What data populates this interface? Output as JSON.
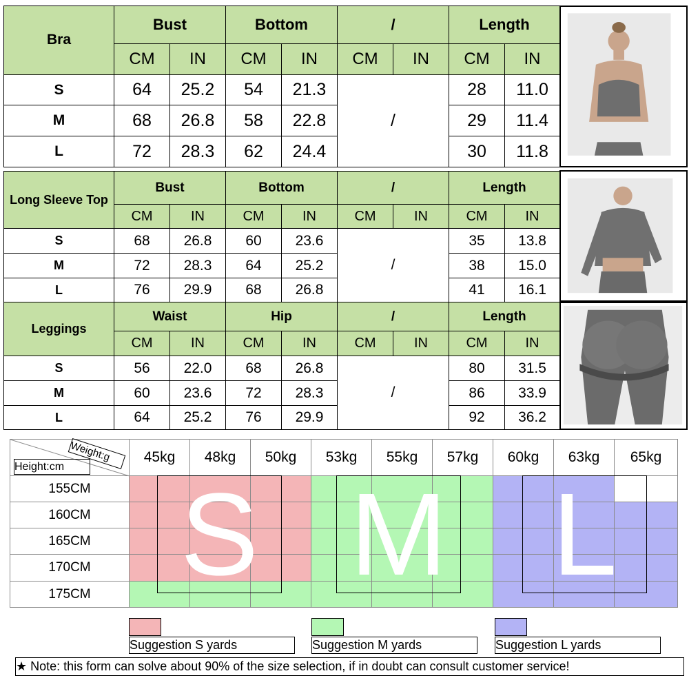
{
  "tables": [
    {
      "title": "Bra",
      "groups": [
        "Bust",
        "Bottom",
        "/",
        "Length"
      ],
      "units": [
        "CM",
        "IN",
        "CM",
        "IN",
        "CM",
        "IN",
        "CM",
        "IN"
      ],
      "rows": [
        {
          "size": "S",
          "values": [
            "64",
            "25.2",
            "54",
            "21.3",
            "28",
            "11.0"
          ]
        },
        {
          "size": "M",
          "values": [
            "68",
            "26.8",
            "58",
            "22.8",
            "29",
            "11.4"
          ]
        },
        {
          "size": "L",
          "values": [
            "72",
            "28.3",
            "62",
            "24.4",
            "30",
            "11.8"
          ]
        }
      ],
      "merged": "/"
    },
    {
      "title": "Long Sleeve Top",
      "groups": [
        "Bust",
        "Bottom",
        "/",
        "Length"
      ],
      "units": [
        "CM",
        "IN",
        "CM",
        "IN",
        "CM",
        "IN",
        "CM",
        "IN"
      ],
      "rows": [
        {
          "size": "S",
          "values": [
            "68",
            "26.8",
            "60",
            "23.6",
            "35",
            "13.8"
          ]
        },
        {
          "size": "M",
          "values": [
            "72",
            "28.3",
            "64",
            "25.2",
            "38",
            "15.0"
          ]
        },
        {
          "size": "L",
          "values": [
            "76",
            "29.9",
            "68",
            "26.8",
            "41",
            "16.1"
          ]
        }
      ],
      "merged": "/"
    },
    {
      "title": "Leggings",
      "groups": [
        "Waist",
        "Hip",
        "/",
        "Length"
      ],
      "units": [
        "CM",
        "IN",
        "CM",
        "IN",
        "CM",
        "IN",
        "CM",
        "IN"
      ],
      "rows": [
        {
          "size": "S",
          "values": [
            "56",
            "22.0",
            "68",
            "26.8",
            "80",
            "31.5"
          ]
        },
        {
          "size": "M",
          "values": [
            "60",
            "23.6",
            "72",
            "28.3",
            "86",
            "33.9"
          ]
        },
        {
          "size": "L",
          "values": [
            "64",
            "25.2",
            "76",
            "29.9",
            "92",
            "36.2"
          ]
        }
      ],
      "merged": "/"
    }
  ],
  "weight_chart": {
    "weight_label": "Weight:g",
    "height_label": "Height:cm",
    "weights": [
      "45kg",
      "48kg",
      "50kg",
      "53kg",
      "55kg",
      "57kg",
      "60kg",
      "63kg",
      "65kg"
    ],
    "heights": [
      "155CM",
      "160CM",
      "165CM",
      "170CM",
      "175CM"
    ],
    "cell_colors": [
      [
        "#f4b5b7",
        "#f4b5b7",
        "#f4b5b7",
        "#b4f7b4",
        "#b4f7b4",
        "#b4f7b4",
        "#b3b3f5",
        "#b3b3f5",
        "#ffffff"
      ],
      [
        "#f4b5b7",
        "#f4b5b7",
        "#f4b5b7",
        "#b4f7b4",
        "#b4f7b4",
        "#b4f7b4",
        "#b3b3f5",
        "#b3b3f5",
        "#b3b3f5"
      ],
      [
        "#f4b5b7",
        "#f4b5b7",
        "#f4b5b7",
        "#b4f7b4",
        "#b4f7b4",
        "#b4f7b4",
        "#b3b3f5",
        "#b3b3f5",
        "#b3b3f5"
      ],
      [
        "#f4b5b7",
        "#f4b5b7",
        "#f4b5b7",
        "#b4f7b4",
        "#b4f7b4",
        "#b4f7b4",
        "#b3b3f5",
        "#b3b3f5",
        "#b3b3f5"
      ],
      [
        "#b4f7b4",
        "#b4f7b4",
        "#b4f7b4",
        "#b4f7b4",
        "#b4f7b4",
        "#b4f7b4",
        "#b3b3f5",
        "#b3b3f5",
        "#b3b3f5"
      ]
    ],
    "zones": [
      "S",
      "M",
      "L"
    ]
  },
  "legend": [
    {
      "label": "Suggestion S yards",
      "color": "#f4b5b7"
    },
    {
      "label": "Suggestion M yards",
      "color": "#b4f7b4"
    },
    {
      "label": "Suggestion L yards",
      "color": "#b3b3f5"
    }
  ],
  "footnote": "★ Note: this form can solve about 90% of the size selection, if in doubt can consult customer service!"
}
